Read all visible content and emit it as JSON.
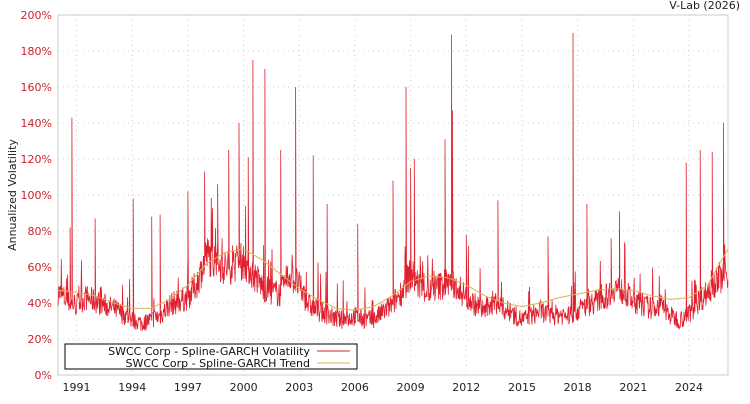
{
  "chart_data": {
    "type": "line",
    "credit": "V-Lab (2026)",
    "ylabel": "Annualized Volatility",
    "xlabel": "",
    "xlim": [
      1990.0,
      2026.1
    ],
    "ylim": [
      0,
      200
    ],
    "grid": true,
    "y_ticks": [
      0,
      20,
      40,
      60,
      80,
      100,
      120,
      140,
      160,
      180,
      200
    ],
    "y_tick_labels": [
      "0%",
      "20%",
      "40%",
      "60%",
      "80%",
      "100%",
      "120%",
      "140%",
      "160%",
      "180%",
      "200%"
    ],
    "x_ticks": [
      1991,
      1994,
      1997,
      2000,
      2003,
      2006,
      2009,
      2012,
      2015,
      2018,
      2021,
      2024
    ],
    "x_tick_labels": [
      "1991",
      "1994",
      "1997",
      "2000",
      "2003",
      "2006",
      "2009",
      "2012",
      "2015",
      "2018",
      "2021",
      "2024"
    ],
    "legend_placement": "bottom-left",
    "colors": {
      "volatility": "#e0202e",
      "trend": "#d9b35a",
      "tick_label_y": "#d0202a"
    },
    "series": [
      {
        "name": "SWCC Corp - Spline-GARCH Volatility",
        "base": [
          [
            1990,
            45
          ],
          [
            1990.5,
            40
          ],
          [
            1991,
            38
          ],
          [
            1991.5,
            42
          ],
          [
            1992,
            40
          ],
          [
            1992.5,
            38
          ],
          [
            1993,
            36
          ],
          [
            1993.5,
            33
          ],
          [
            1994,
            30
          ],
          [
            1994.5,
            28
          ],
          [
            1995,
            30
          ],
          [
            1995.5,
            32
          ],
          [
            1996,
            38
          ],
          [
            1996.5,
            40
          ],
          [
            1997,
            42
          ],
          [
            1997.5,
            50
          ],
          [
            1998,
            65
          ],
          [
            1998.5,
            62
          ],
          [
            1999,
            58
          ],
          [
            1999.5,
            60
          ],
          [
            2000,
            62
          ],
          [
            2000.5,
            55
          ],
          [
            2001,
            48
          ],
          [
            2001.5,
            45
          ],
          [
            2002,
            44
          ],
          [
            2002.5,
            55
          ],
          [
            2003,
            48
          ],
          [
            2003.5,
            38
          ],
          [
            2004,
            35
          ],
          [
            2004.5,
            33
          ],
          [
            2005,
            30
          ],
          [
            2005.5,
            30
          ],
          [
            2006,
            32
          ],
          [
            2006.5,
            30
          ],
          [
            2007,
            30
          ],
          [
            2007.5,
            34
          ],
          [
            2008,
            38
          ],
          [
            2008.5,
            45
          ],
          [
            2009,
            55
          ],
          [
            2009.5,
            48
          ],
          [
            2010,
            45
          ],
          [
            2010.5,
            48
          ],
          [
            2011,
            50
          ],
          [
            2011.5,
            48
          ],
          [
            2012,
            42
          ],
          [
            2012.5,
            38
          ],
          [
            2013,
            35
          ],
          [
            2013.5,
            40
          ],
          [
            2014,
            36
          ],
          [
            2014.5,
            33
          ],
          [
            2015,
            30
          ],
          [
            2015.5,
            32
          ],
          [
            2016,
            35
          ],
          [
            2016.5,
            32
          ],
          [
            2017,
            33
          ],
          [
            2017.5,
            32
          ],
          [
            2018,
            35
          ],
          [
            2018.5,
            38
          ],
          [
            2019,
            40
          ],
          [
            2019.5,
            42
          ],
          [
            2020,
            48
          ],
          [
            2020.5,
            45
          ],
          [
            2021,
            40
          ],
          [
            2021.5,
            38
          ],
          [
            2022,
            36
          ],
          [
            2022.5,
            38
          ],
          [
            2023,
            32
          ],
          [
            2023.5,
            30
          ],
          [
            2024,
            33
          ],
          [
            2024.5,
            40
          ],
          [
            2025,
            45
          ],
          [
            2025.5,
            52
          ],
          [
            2026.1,
            55
          ]
        ],
        "spikes": [
          [
            1990.65,
            82
          ],
          [
            1990.75,
            143
          ],
          [
            1992.0,
            87
          ],
          [
            1994.05,
            98
          ],
          [
            1995.05,
            88
          ],
          [
            1995.5,
            89
          ],
          [
            1997.0,
            102
          ],
          [
            1997.9,
            113
          ],
          [
            1998.6,
            106
          ],
          [
            1999.2,
            125
          ],
          [
            1999.75,
            140
          ],
          [
            2000.25,
            121
          ],
          [
            2000.5,
            175
          ],
          [
            2001.15,
            170
          ],
          [
            2002.0,
            125
          ],
          [
            2002.8,
            160
          ],
          [
            2003.75,
            122
          ],
          [
            2004.5,
            95
          ],
          [
            2006.15,
            84
          ],
          [
            2008.05,
            108
          ],
          [
            2008.75,
            160
          ],
          [
            2009.0,
            115
          ],
          [
            2009.2,
            120
          ],
          [
            2010.85,
            131
          ],
          [
            2011.2,
            189
          ],
          [
            2011.25,
            147
          ],
          [
            2012.0,
            78
          ],
          [
            2013.7,
            97
          ],
          [
            2016.4,
            77
          ],
          [
            2017.75,
            190
          ],
          [
            2018.5,
            95
          ],
          [
            2019.8,
            76
          ],
          [
            2020.25,
            91
          ],
          [
            2023.85,
            118
          ],
          [
            2024.6,
            125
          ],
          [
            2025.25,
            124
          ],
          [
            2025.85,
            140
          ]
        ]
      },
      {
        "name": "SWCC Corp - Spline-GARCH Trend",
        "points": [
          [
            1990,
            47
          ],
          [
            1991,
            46
          ],
          [
            1992,
            44
          ],
          [
            1993,
            40
          ],
          [
            1994,
            37
          ],
          [
            1995,
            37
          ],
          [
            1996,
            42
          ],
          [
            1997,
            50
          ],
          [
            1998,
            62
          ],
          [
            1999,
            68
          ],
          [
            2000,
            70
          ],
          [
            2001,
            64
          ],
          [
            2002,
            56
          ],
          [
            2003,
            48
          ],
          [
            2004,
            42
          ],
          [
            2005,
            37
          ],
          [
            2006,
            36
          ],
          [
            2007,
            38
          ],
          [
            2008,
            44
          ],
          [
            2009,
            52
          ],
          [
            2010,
            55
          ],
          [
            2011,
            54
          ],
          [
            2012,
            50
          ],
          [
            2013,
            44
          ],
          [
            2014,
            40
          ],
          [
            2015,
            38
          ],
          [
            2016,
            40
          ],
          [
            2017,
            43
          ],
          [
            2018,
            45
          ],
          [
            2019,
            47
          ],
          [
            2020,
            48
          ],
          [
            2021,
            47
          ],
          [
            2022,
            44
          ],
          [
            2023,
            42
          ],
          [
            2024,
            43
          ],
          [
            2025,
            50
          ],
          [
            2026.1,
            70
          ]
        ]
      }
    ]
  }
}
